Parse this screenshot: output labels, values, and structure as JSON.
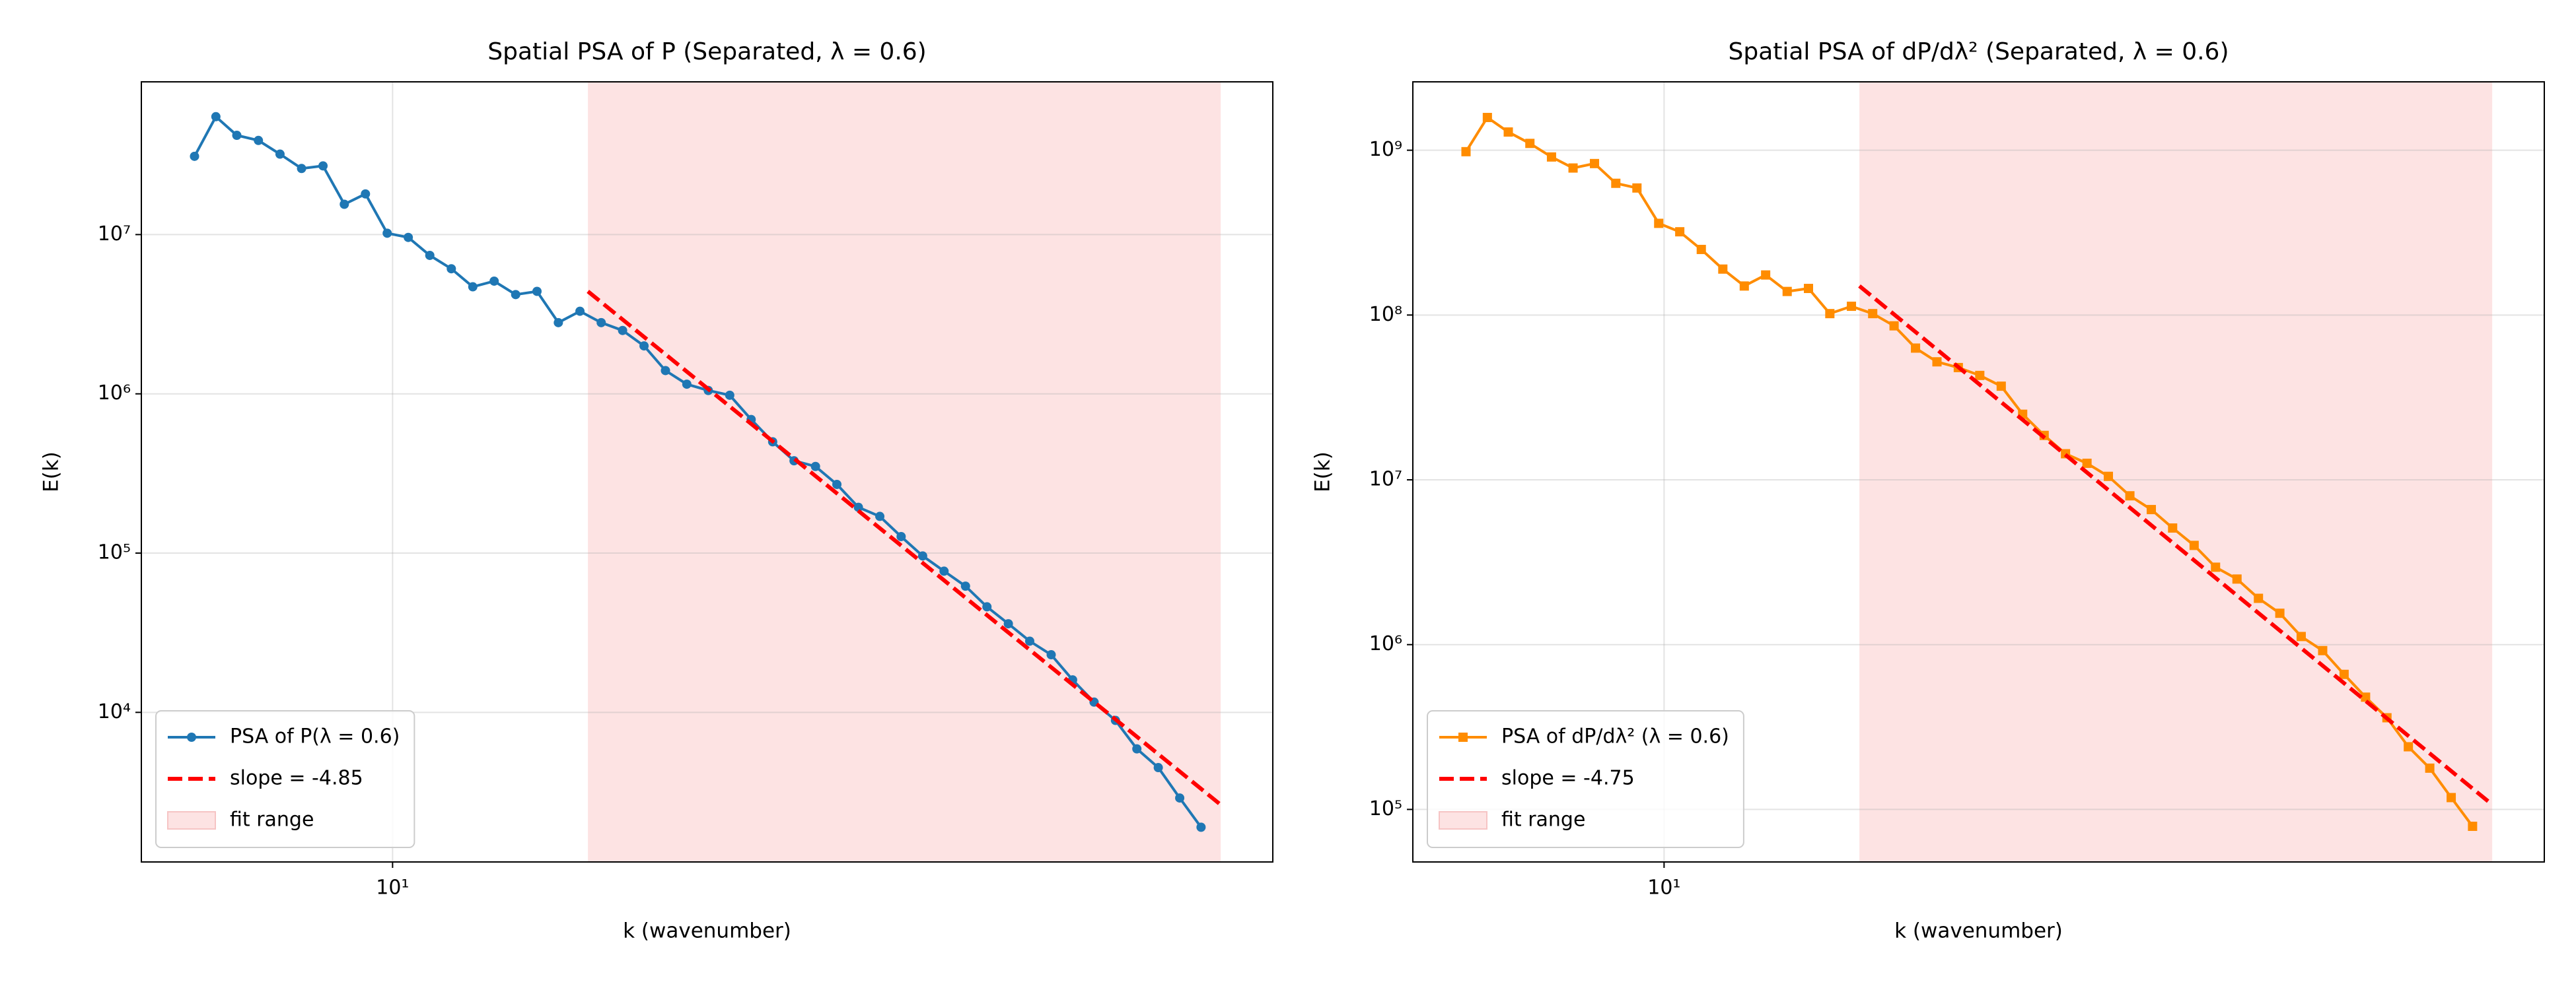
{
  "chart_data": [
    {
      "type": "line",
      "title": "Spatial PSA of P (Separated, λ = 0.6)",
      "xlabel": "k (wavenumber)",
      "ylabel": "E(k)",
      "xscale": "log",
      "yscale": "log",
      "grid": true,
      "legend_loc": "lower left",
      "xlim": [
        5.42,
        85.5
      ],
      "ylim": [
        1150,
        91000000.0
      ],
      "xticks": [
        {
          "value": 10,
          "label": "10¹"
        }
      ],
      "yticks": [
        {
          "value": 10000.0,
          "label": "10⁴"
        },
        {
          "value": 100000.0,
          "label": "10⁵"
        },
        {
          "value": 1000000.0,
          "label": "10⁶"
        },
        {
          "value": 10000000.0,
          "label": "10⁷"
        }
      ],
      "span": {
        "name": "fit range",
        "x": [
          16.1,
          75.3
        ],
        "color": "#fde3e3"
      },
      "series": [
        {
          "name": "PSA of P(λ = 0.6)",
          "color": "#1f77b4",
          "marker": "circle",
          "x": [
            6.17,
            6.5,
            6.84,
            7.21,
            7.6,
            8.01,
            8.44,
            8.89,
            9.36,
            9.87,
            10.39,
            10.95,
            11.54,
            12.16,
            12.81,
            13.5,
            14.22,
            14.98,
            15.79,
            16.63,
            17.52,
            18.46,
            19.45,
            20.49,
            21.59,
            22.75,
            23.97,
            25.26,
            26.61,
            28.04,
            29.54,
            31.13,
            32.8,
            34.55,
            36.41,
            38.36,
            40.42,
            42.59,
            44.87,
            47.27,
            49.81,
            52.48,
            55.3,
            58.26,
            61.38,
            64.67,
            68.14,
            71.78
          ],
          "values": [
            31000000.0,
            55000000.0,
            42000000.0,
            39000000.0,
            32000000.0,
            26000000.0,
            27000000.0,
            15500000.0,
            18000000.0,
            10200000.0,
            9600000.0,
            7400000.0,
            6100000.0,
            4700000.0,
            5100000.0,
            4200000.0,
            4400000.0,
            2800000.0,
            3300000.0,
            2800000.0,
            2500000.0,
            2000000.0,
            1400000.0,
            1150000.0,
            1050000.0,
            980000.0,
            690000.0,
            500000.0,
            380000.0,
            350000.0,
            270000.0,
            194000.0,
            170000.0,
            127000.0,
            96000.0,
            77000.0,
            62000.0,
            46000.0,
            36000.0,
            28000.0,
            23000.0,
            16000.0,
            11600.0,
            8900.0,
            5900.0,
            4500.0,
            2900.0,
            1900.0
          ]
        },
        {
          "name": "slope = -4.85",
          "color": "#ff0000",
          "linestyle": "dashed",
          "x": [
            16.1,
            75.3
          ],
          "values": [
            4400000.0,
            2630
          ]
        }
      ]
    },
    {
      "type": "line",
      "title": "Spatial PSA of dP/dλ² (Separated, λ = 0.6)",
      "xlabel": "k (wavenumber)",
      "ylabel": "E(k)",
      "xscale": "log",
      "yscale": "log",
      "grid": true,
      "legend_loc": "lower left",
      "xlim": [
        5.42,
        85.5
      ],
      "ylim": [
        48000.0,
        2600000000.0
      ],
      "xticks": [
        {
          "value": 10,
          "label": "10¹"
        }
      ],
      "yticks": [
        {
          "value": 100000.0,
          "label": "10⁵"
        },
        {
          "value": 1000000.0,
          "label": "10⁶"
        },
        {
          "value": 10000000.0,
          "label": "10⁷"
        },
        {
          "value": 100000000.0,
          "label": "10⁸"
        },
        {
          "value": 1000000000.0,
          "label": "10⁹"
        }
      ],
      "span": {
        "name": "fit range",
        "x": [
          16.1,
          75.3
        ],
        "color": "#fde3e3"
      },
      "series": [
        {
          "name": "PSA of dP/dλ² (λ = 0.6)",
          "color": "#ff8c00",
          "marker": "square",
          "x": [
            6.17,
            6.5,
            6.84,
            7.21,
            7.6,
            8.01,
            8.44,
            8.89,
            9.36,
            9.87,
            10.39,
            10.95,
            11.54,
            12.16,
            12.81,
            13.5,
            14.22,
            14.98,
            15.79,
            16.63,
            17.52,
            18.46,
            19.45,
            20.49,
            21.59,
            22.75,
            23.97,
            25.26,
            26.61,
            28.04,
            29.54,
            31.13,
            32.8,
            34.55,
            36.41,
            38.36,
            40.42,
            42.59,
            44.87,
            47.27,
            49.81,
            52.48,
            55.3,
            58.26,
            61.38,
            64.67,
            68.14,
            71.78
          ],
          "values": [
            980000000.0,
            1580000000.0,
            1290000000.0,
            1100000000.0,
            910000000.0,
            780000000.0,
            830000000.0,
            630000000.0,
            590000000.0,
            360000000.0,
            320000000.0,
            250000000.0,
            190000000.0,
            150000000.0,
            175000000.0,
            139000000.0,
            145000000.0,
            102000000.0,
            113000000.0,
            102000000.0,
            86000000.0,
            63000000.0,
            52000000.0,
            48000000.0,
            43000000.0,
            37000000.0,
            25000000.0,
            18600000.0,
            14400000.0,
            12600000.0,
            10500000.0,
            8000000.0,
            6600000.0,
            5100000.0,
            4000000.0,
            2950000.0,
            2500000.0,
            1910000.0,
            1550000.0,
            1120000.0,
            920000.0,
            660000.0,
            480000.0,
            360000.0,
            240000.0,
            178000.0,
            118000.0,
            79000.0
          ]
        },
        {
          "name": "slope = -4.75",
          "color": "#ff0000",
          "linestyle": "dashed",
          "x": [
            16.1,
            75.3
          ],
          "values": [
            150000000.0,
            107000.0
          ]
        }
      ]
    }
  ]
}
